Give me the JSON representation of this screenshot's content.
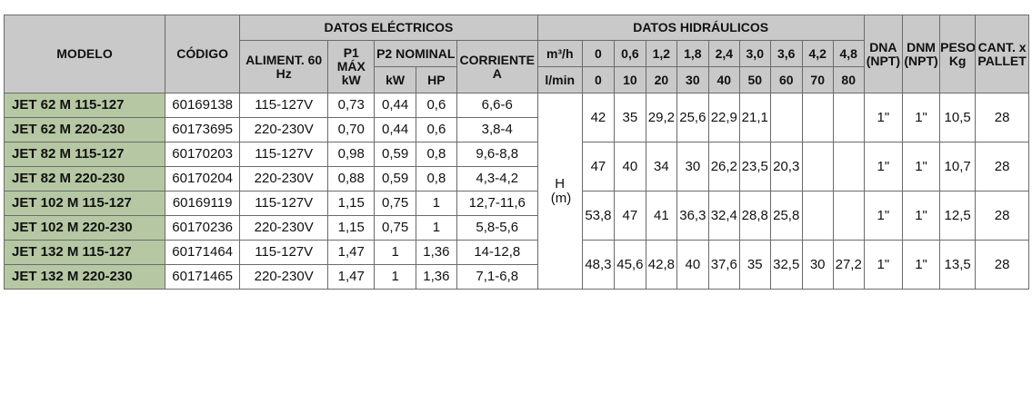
{
  "headers": {
    "modelo": "MODELO",
    "codigo": "CÓDIGO",
    "datos_electricos": "DATOS ELÉCTRICOS",
    "datos_hidraulicos": "DATOS HIDRÁULICOS",
    "aliment": "ALIMENT. 60 Hz",
    "p1": "P1 MÁX kW",
    "p2": "P2 NOMINAL",
    "kw": "kW",
    "hp": "HP",
    "corriente": "CORRIENTE A",
    "m3h": "m³/h",
    "lmin": "l/min",
    "flow_m3h": [
      "0",
      "0,6",
      "1,2",
      "1,8",
      "2,4",
      "3,0",
      "3,6",
      "4,2",
      "4,8"
    ],
    "flow_lmin": [
      "0",
      "10",
      "20",
      "30",
      "40",
      "50",
      "60",
      "70",
      "80"
    ],
    "dna": "DNA (NPT)",
    "dnm": "DNM (NPT)",
    "peso": "PESO Kg",
    "cant": "CANT. x PALLET",
    "h_label": "H (m)"
  },
  "rows": [
    {
      "modelo": "JET 62 M 115-127",
      "codigo": "60169138",
      "aliment": "115-127V",
      "p1": "0,73",
      "kw": "0,44",
      "hp": "0,6",
      "corriente": "6,6-6"
    },
    {
      "modelo": "JET 62 M 220-230",
      "codigo": "60173695",
      "aliment": "220-230V",
      "p1": "0,70",
      "kw": "0,44",
      "hp": "0,6",
      "corriente": "3,8-4"
    },
    {
      "modelo": "JET 82 M 115-127",
      "codigo": "60170203",
      "aliment": "115-127V",
      "p1": "0,98",
      "kw": "0,59",
      "hp": "0,8",
      "corriente": "9,6-8,8"
    },
    {
      "modelo": "JET 82 M 220-230",
      "codigo": "60170204",
      "aliment": "220-230V",
      "p1": "0,88",
      "kw": "0,59",
      "hp": "0,8",
      "corriente": "4,3-4,2"
    },
    {
      "modelo": "JET 102 M 115-127",
      "codigo": "60169119",
      "aliment": "115-127V",
      "p1": "1,15",
      "kw": "0,75",
      "hp": "1",
      "corriente": "12,7-11,6"
    },
    {
      "modelo": "JET 102 M 220-230",
      "codigo": "60170236",
      "aliment": "220-230V",
      "p1": "1,15",
      "kw": "0,75",
      "hp": "1",
      "corriente": "5,8-5,6"
    },
    {
      "modelo": "JET 132 M 115-127",
      "codigo": "60171464",
      "aliment": "115-127V",
      "p1": "1,47",
      "kw": "1",
      "hp": "1,36",
      "corriente": "14-12,8"
    },
    {
      "modelo": "JET 132 M 220-230",
      "codigo": "60171465",
      "aliment": "220-230V",
      "p1": "1,47",
      "kw": "1",
      "hp": "1,36",
      "corriente": "7,1-6,8"
    }
  ],
  "groups": [
    {
      "h": [
        "42",
        "35",
        "29,2",
        "25,6",
        "22,9",
        "21,1",
        "",
        "",
        ""
      ],
      "dna": "1\"",
      "dnm": "1\"",
      "peso": "10,5",
      "cant": "28"
    },
    {
      "h": [
        "47",
        "40",
        "34",
        "30",
        "26,2",
        "23,5",
        "20,3",
        "",
        ""
      ],
      "dna": "1\"",
      "dnm": "1\"",
      "peso": "10,7",
      "cant": "28"
    },
    {
      "h": [
        "53,8",
        "47",
        "41",
        "36,3",
        "32,4",
        "28,8",
        "25,8",
        "",
        ""
      ],
      "dna": "1\"",
      "dnm": "1\"",
      "peso": "12,5",
      "cant": "28"
    },
    {
      "h": [
        "48,3",
        "45,6",
        "42,8",
        "40",
        "37,6",
        "35",
        "32,5",
        "30",
        "27,2"
      ],
      "dna": "1\"",
      "dnm": "1\"",
      "peso": "13,5",
      "cant": "28"
    }
  ]
}
